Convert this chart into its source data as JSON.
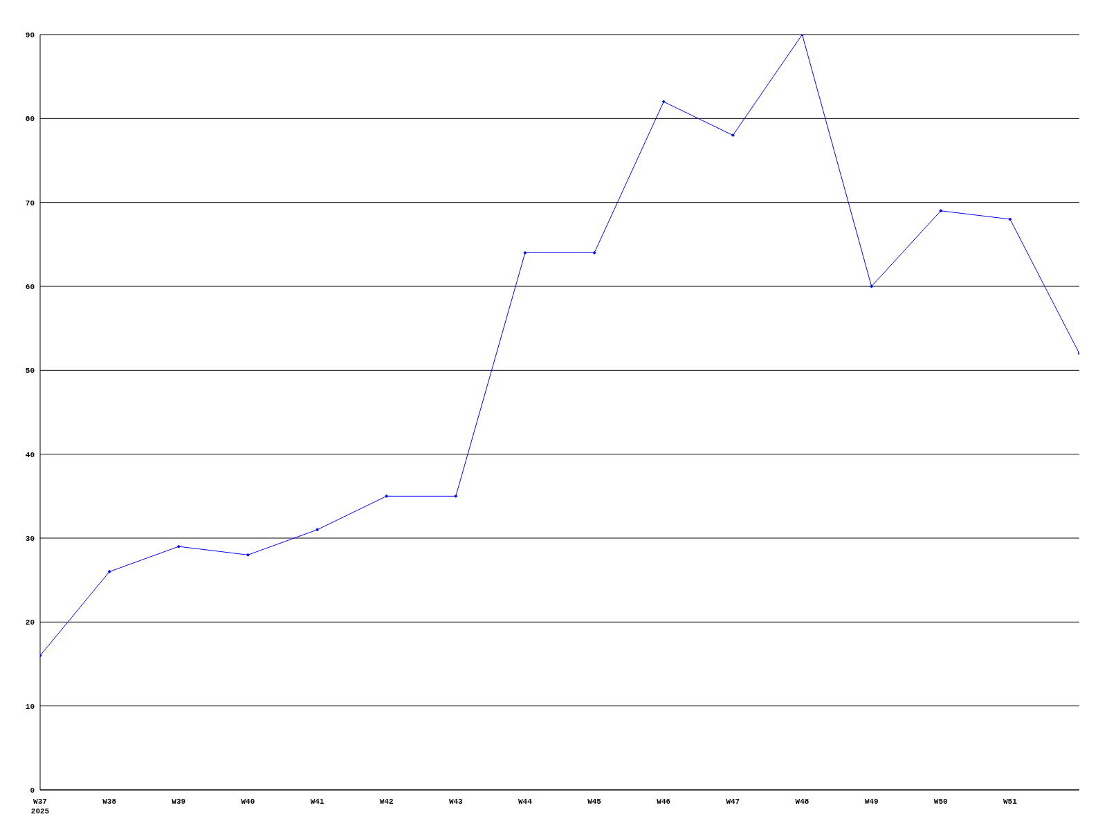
{
  "chart_data": {
    "type": "line",
    "categories": [
      "W37\n2025",
      "W38",
      "W39",
      "W40",
      "W41",
      "W42",
      "W43",
      "W44",
      "W45",
      "W46",
      "W47",
      "W48",
      "W49",
      "W50",
      "W51",
      null
    ],
    "series": [
      {
        "color": "#0000ff",
        "values": [
          16,
          26,
          29,
          28,
          31,
          35,
          35,
          64,
          64,
          82,
          78,
          90,
          60,
          69,
          68,
          52
        ]
      }
    ],
    "ylim": [
      0,
      90
    ],
    "yticks": [
      0,
      10,
      20,
      30,
      40,
      50,
      60,
      70,
      80,
      90
    ],
    "grid": "y",
    "marker": "diamond",
    "line_style": "solid",
    "legend": false
  }
}
